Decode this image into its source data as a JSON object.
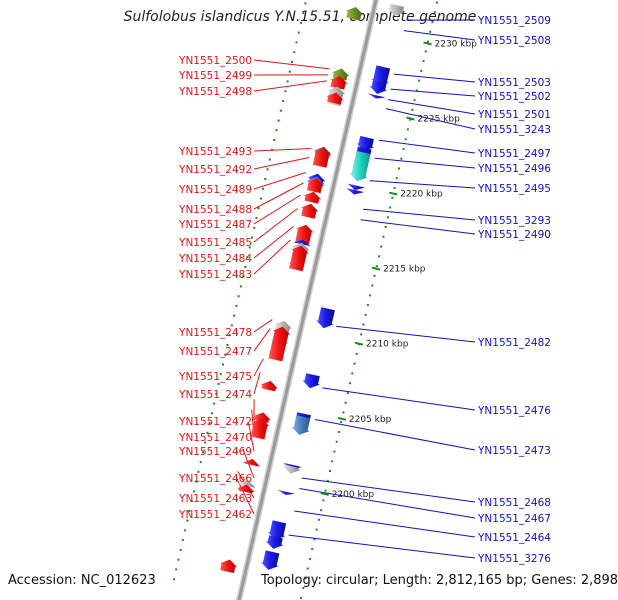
{
  "title": "Sulfolobus islandicus Y.N.15.51, complete genome",
  "footer": {
    "accession": "Accession: NC_012623",
    "topology": "Topology: circular; Length: 2,812,165 bp; Genes: 2,898"
  },
  "colors": {
    "forward_label": "#d81818",
    "reverse_label": "#1212b8",
    "axis": "#9a9a9a",
    "tick": "#1a8a1a",
    "gene_red": "#ee1111",
    "gene_blue": "#1a1ae6",
    "gene_cyan": "#22d4c0",
    "gene_olive": "#6b8e23",
    "gene_grey": "#b8b8b8",
    "gene_dark": "#606060",
    "gene_steelblue": "#4a7fc0"
  },
  "ruler": [
    {
      "kbp": 2230,
      "label": "2230 kbp"
    },
    {
      "kbp": 2225,
      "label": "2225 kbp"
    },
    {
      "kbp": 2220,
      "label": "2220 kbp"
    },
    {
      "kbp": 2215,
      "label": "2215 kbp"
    },
    {
      "kbp": 2210,
      "label": "2210 kbp"
    },
    {
      "kbp": 2205,
      "label": "2205 kbp"
    },
    {
      "kbp": 2200,
      "label": "2200 kbp"
    }
  ],
  "forward_labels": [
    {
      "text": "YN1551_2500",
      "gene_kbp": 2227.0
    },
    {
      "text": "YN1551_2499",
      "gene_kbp": 2226.6
    },
    {
      "text": "YN1551_2498",
      "gene_kbp": 2226.2
    },
    {
      "text": "YN1551_2493",
      "gene_kbp": 2221.7
    },
    {
      "text": "YN1551_2492",
      "gene_kbp": 2221.1
    },
    {
      "text": "YN1551_2489",
      "gene_kbp": 2220.1
    },
    {
      "text": "YN1551_2488",
      "gene_kbp": 2219.4
    },
    {
      "text": "YN1551_2487",
      "gene_kbp": 2218.6
    },
    {
      "text": "YN1551_2485",
      "gene_kbp": 2217.7
    },
    {
      "text": "YN1551_2484",
      "gene_kbp": 2216.5
    },
    {
      "text": "YN1551_2483",
      "gene_kbp": 2215.6
    },
    {
      "text": "YN1551_2478",
      "gene_kbp": 2210.3
    },
    {
      "text": "YN1551_2477",
      "gene_kbp": 2209.7
    },
    {
      "text": "YN1551_2475",
      "gene_kbp": 2207.7
    },
    {
      "text": "YN1551_2474",
      "gene_kbp": 2206.8
    },
    {
      "text": "YN1551_2472",
      "gene_kbp": 2205.0
    },
    {
      "text": "YN1551_2470",
      "gene_kbp": 2204.3
    },
    {
      "text": "YN1551_2469",
      "gene_kbp": 2203.4
    },
    {
      "text": "YN1551_2466",
      "gene_kbp": 2201.7
    },
    {
      "text": "YN1551_2463",
      "gene_kbp": 2200.2
    },
    {
      "text": "YN1551_2462",
      "gene_kbp": 2199.8
    }
  ],
  "reverse_labels": [
    {
      "text": "YN1551_2509",
      "gene_kbp": 2231.2
    },
    {
      "text": "YN1551_2508",
      "gene_kbp": 2230.5
    },
    {
      "text": "YN1551_2503",
      "gene_kbp": 2227.6
    },
    {
      "text": "YN1551_2502",
      "gene_kbp": 2226.6
    },
    {
      "text": "YN1551_2501",
      "gene_kbp": 2225.9
    },
    {
      "text": "YN1551_3243",
      "gene_kbp": 2225.3
    },
    {
      "text": "YN1551_2497",
      "gene_kbp": 2223.2
    },
    {
      "text": "YN1551_2496",
      "gene_kbp": 2222.0
    },
    {
      "text": "YN1551_2495",
      "gene_kbp": 2220.5
    },
    {
      "text": "YN1551_3293",
      "gene_kbp": 2218.6
    },
    {
      "text": "YN1551_2490",
      "gene_kbp": 2217.9
    },
    {
      "text": "YN1551_2482",
      "gene_kbp": 2210.8
    },
    {
      "text": "YN1551_2476",
      "gene_kbp": 2206.7
    },
    {
      "text": "YN1551_2473",
      "gene_kbp": 2204.6
    },
    {
      "text": "YN1551_2468",
      "gene_kbp": 2200.7
    },
    {
      "text": "YN1551_2467",
      "gene_kbp": 2200.0
    },
    {
      "text": "YN1551_2464",
      "gene_kbp": 2198.5
    },
    {
      "text": "YN1551_3276",
      "gene_kbp": 2196.9
    }
  ],
  "forward_genes": [
    {
      "start_kbp": 2231.3,
      "end_kbp": 2230.5,
      "color": "olive"
    },
    {
      "start_kbp": 2227.2,
      "end_kbp": 2226.5,
      "color": "olive"
    },
    {
      "start_kbp": 2226.7,
      "end_kbp": 2225.9,
      "color": "red"
    },
    {
      "start_kbp": 2226.0,
      "end_kbp": 2224.8,
      "color": "grey"
    },
    {
      "start_kbp": 2225.6,
      "end_kbp": 2224.9,
      "color": "red"
    },
    {
      "start_kbp": 2222.0,
      "end_kbp": 2221.3,
      "color": "dark"
    },
    {
      "start_kbp": 2221.9,
      "end_kbp": 2220.7,
      "color": "red"
    },
    {
      "start_kbp": 2220.2,
      "end_kbp": 2219.5,
      "color": "blue"
    },
    {
      "start_kbp": 2220.0,
      "end_kbp": 2219.3,
      "color": "steelblue"
    },
    {
      "start_kbp": 2219.9,
      "end_kbp": 2219.0,
      "color": "red"
    },
    {
      "start_kbp": 2219.0,
      "end_kbp": 2218.3,
      "color": "red"
    },
    {
      "start_kbp": 2218.2,
      "end_kbp": 2217.3,
      "color": "red"
    },
    {
      "start_kbp": 2216.8,
      "end_kbp": 2215.6,
      "color": "red"
    },
    {
      "start_kbp": 2215.8,
      "end_kbp": 2215.5,
      "color": "blue"
    },
    {
      "start_kbp": 2215.6,
      "end_kbp": 2213.8,
      "color": "grey"
    },
    {
      "start_kbp": 2215.4,
      "end_kbp": 2213.8,
      "color": "red"
    },
    {
      "start_kbp": 2210.4,
      "end_kbp": 2209.4,
      "color": "grey"
    },
    {
      "start_kbp": 2209.4,
      "end_kbp": 2208.0,
      "color": "cyan"
    },
    {
      "start_kbp": 2210.0,
      "end_kbp": 2207.8,
      "color": "red"
    },
    {
      "start_kbp": 2206.4,
      "end_kbp": 2205.8,
      "color": "red"
    },
    {
      "start_kbp": 2204.3,
      "end_kbp": 2203.7,
      "color": "red"
    },
    {
      "start_kbp": 2203.9,
      "end_kbp": 2202.6,
      "color": "red"
    },
    {
      "start_kbp": 2201.2,
      "end_kbp": 2200.8,
      "color": "red"
    },
    {
      "start_kbp": 2199.8,
      "end_kbp": 2199.4,
      "color": "grey"
    },
    {
      "start_kbp": 2199.5,
      "end_kbp": 2199.0,
      "color": "red"
    },
    {
      "start_kbp": 2194.5,
      "end_kbp": 2193.7,
      "color": "red"
    }
  ],
  "reverse_genes": [
    {
      "start_kbp": 2232.0,
      "end_kbp": 2231.3,
      "color": "grey"
    },
    {
      "start_kbp": 2227.9,
      "end_kbp": 2226.6,
      "color": "blue"
    },
    {
      "start_kbp": 2226.9,
      "end_kbp": 2226.1,
      "color": "blue"
    },
    {
      "start_kbp": 2226.0,
      "end_kbp": 2225.8,
      "color": "blue"
    },
    {
      "start_kbp": 2223.2,
      "end_kbp": 2222.3,
      "color": "blue"
    },
    {
      "start_kbp": 2222.5,
      "end_kbp": 2220.3,
      "color": "blue"
    },
    {
      "start_kbp": 2222.2,
      "end_kbp": 2220.3,
      "color": "cyan"
    },
    {
      "start_kbp": 2220.0,
      "end_kbp": 2219.7,
      "color": "blue"
    },
    {
      "start_kbp": 2219.7,
      "end_kbp": 2219.4,
      "color": "blue"
    },
    {
      "start_kbp": 2211.8,
      "end_kbp": 2210.5,
      "color": "blue"
    },
    {
      "start_kbp": 2207.4,
      "end_kbp": 2206.5,
      "color": "blue"
    },
    {
      "start_kbp": 2204.8,
      "end_kbp": 2203.4,
      "color": "blue"
    },
    {
      "start_kbp": 2204.6,
      "end_kbp": 2203.4,
      "color": "steelblue"
    },
    {
      "start_kbp": 2201.4,
      "end_kbp": 2201.0,
      "color": "blue"
    },
    {
      "start_kbp": 2201.3,
      "end_kbp": 2200.8,
      "color": "grey"
    },
    {
      "start_kbp": 2199.6,
      "end_kbp": 2199.4,
      "color": "blue"
    },
    {
      "start_kbp": 2197.6,
      "end_kbp": 2196.4,
      "color": "blue"
    },
    {
      "start_kbp": 2196.6,
      "end_kbp": 2195.8,
      "color": "blue"
    },
    {
      "start_kbp": 2195.6,
      "end_kbp": 2194.4,
      "color": "blue"
    }
  ]
}
